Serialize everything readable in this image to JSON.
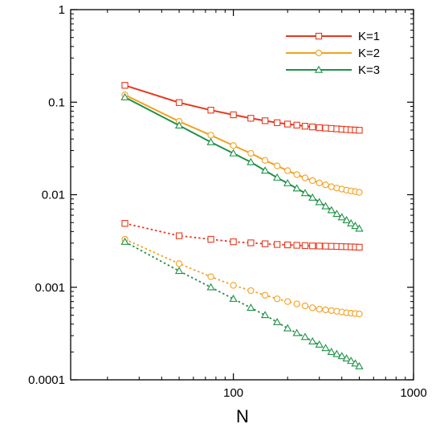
{
  "chart_data": {
    "type": "line",
    "title": "",
    "xlabel": "N",
    "ylabel": "",
    "xscale": "log",
    "yscale": "log",
    "xlim": [
      12.5,
      1000
    ],
    "ylim": [
      0.0001,
      1
    ],
    "x_ticks": [
      100,
      1000
    ],
    "x_tick_labels": [
      "100",
      "1000"
    ],
    "y_ticks": [
      1,
      0.1,
      0.01,
      0.001,
      0.0001
    ],
    "y_tick_labels": [
      "1",
      "0.1",
      "0.01",
      "0.001",
      "0.0001"
    ],
    "grid": false,
    "legend_position": "top-right",
    "x": [
      25,
      50,
      75,
      100,
      125,
      150,
      175,
      200,
      225,
      250,
      275,
      300,
      325,
      350,
      375,
      400,
      425,
      450,
      475,
      500
    ],
    "series": [
      {
        "name": "K=1",
        "color": "#e8371c",
        "marker": "square",
        "line_style": "solid",
        "in_legend": true,
        "values": [
          0.152,
          0.099,
          0.082,
          0.073,
          0.067,
          0.063,
          0.06,
          0.058,
          0.0565,
          0.055,
          0.054,
          0.053,
          0.0525,
          0.052,
          0.0515,
          0.051,
          0.0506,
          0.0503,
          0.05,
          0.0497
        ]
      },
      {
        "name": "K=2",
        "color": "#f5a01e",
        "marker": "circle",
        "line_style": "solid",
        "in_legend": true,
        "values": [
          0.12,
          0.062,
          0.044,
          0.034,
          0.028,
          0.0235,
          0.0205,
          0.0182,
          0.0165,
          0.0152,
          0.0142,
          0.0134,
          0.0128,
          0.0122,
          0.0118,
          0.0115,
          0.0112,
          0.011,
          0.0108,
          0.0106
        ]
      },
      {
        "name": "K=3",
        "color": "#1f9146",
        "marker": "triangle",
        "line_style": "solid",
        "in_legend": true,
        "values": [
          0.113,
          0.056,
          0.037,
          0.028,
          0.0225,
          0.0182,
          0.0153,
          0.0133,
          0.0117,
          0.0104,
          0.0093,
          0.0083,
          0.0075,
          0.0068,
          0.0062,
          0.0057,
          0.0053,
          0.0049,
          0.0046,
          0.0043
        ]
      },
      {
        "color": "#e8371c",
        "marker": "square",
        "line_style": "dotted",
        "in_legend": false,
        "values": [
          0.0049,
          0.0036,
          0.0033,
          0.0031,
          0.00302,
          0.00295,
          0.0029,
          0.00287,
          0.00284,
          0.00282,
          0.0028,
          0.00279,
          0.00278,
          0.00277,
          0.00276,
          0.00275,
          0.00274,
          0.00273,
          0.00272,
          0.00271
        ]
      },
      {
        "color": "#f5a01e",
        "marker": "circle",
        "line_style": "dotted",
        "in_legend": false,
        "values": [
          0.0033,
          0.0018,
          0.0013,
          0.00105,
          0.00092,
          0.00082,
          0.00075,
          0.0007,
          0.00066,
          0.00063,
          0.0006,
          0.00058,
          0.00057,
          0.00056,
          0.00055,
          0.00054,
          0.00053,
          0.000525,
          0.00052,
          0.000515
        ]
      },
      {
        "color": "#1f9146",
        "marker": "triangle",
        "line_style": "dotted",
        "in_legend": false,
        "values": [
          0.0031,
          0.0015,
          0.001,
          0.00075,
          0.0006,
          0.0005,
          0.00042,
          0.00036,
          0.00032,
          0.00029,
          0.00026,
          0.00024,
          0.00022,
          0.0002,
          0.00019,
          0.00018,
          0.00017,
          0.00016,
          0.00015,
          0.00014
        ]
      }
    ]
  }
}
